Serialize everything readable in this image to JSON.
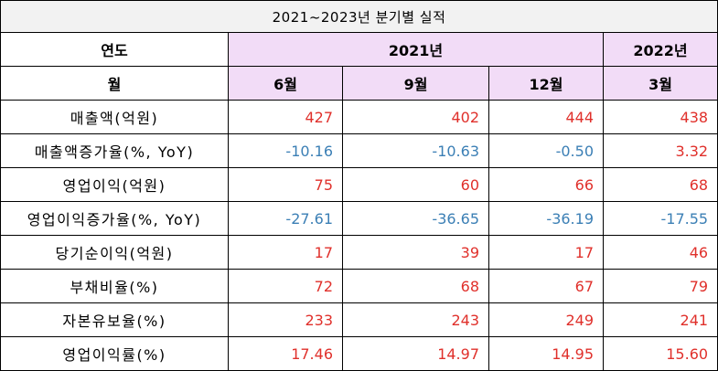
{
  "title": "2021~2023년 분기별 실적",
  "header": {
    "year_label": "연도",
    "month_label": "월",
    "years": [
      {
        "label": "2021년",
        "span": 3
      },
      {
        "label": "2022년",
        "span": 1
      }
    ],
    "months": [
      "6월",
      "9월",
      "12월",
      "3월"
    ]
  },
  "rows": [
    {
      "label": "매출액(억원)",
      "values": [
        "427",
        "402",
        "444",
        "438"
      ]
    },
    {
      "label": "매출액증가율(%, YoY)",
      "values": [
        "-10.16",
        "-10.63",
        "-0.50",
        "3.32"
      ]
    },
    {
      "label": "영업이익(억원)",
      "values": [
        "75",
        "60",
        "66",
        "68"
      ]
    },
    {
      "label": "영업이익증가율(%, YoY)",
      "values": [
        "-27.61",
        "-36.65",
        "-36.19",
        "-17.55"
      ]
    },
    {
      "label": "당기순이익(억원)",
      "values": [
        "17",
        "39",
        "17",
        "46"
      ]
    },
    {
      "label": "부채비율(%)",
      "values": [
        "72",
        "68",
        "67",
        "79"
      ]
    },
    {
      "label": "자본유보율(%)",
      "values": [
        "233",
        "243",
        "249",
        "241"
      ]
    },
    {
      "label": "영업이익률(%)",
      "values": [
        "17.46",
        "14.97",
        "14.95",
        "15.60"
      ]
    }
  ],
  "colors": {
    "positive": "#e0302b",
    "negative": "#3b7fb5",
    "header_purple": "#f2dcf7",
    "title_bg": "#f2f2f2"
  }
}
